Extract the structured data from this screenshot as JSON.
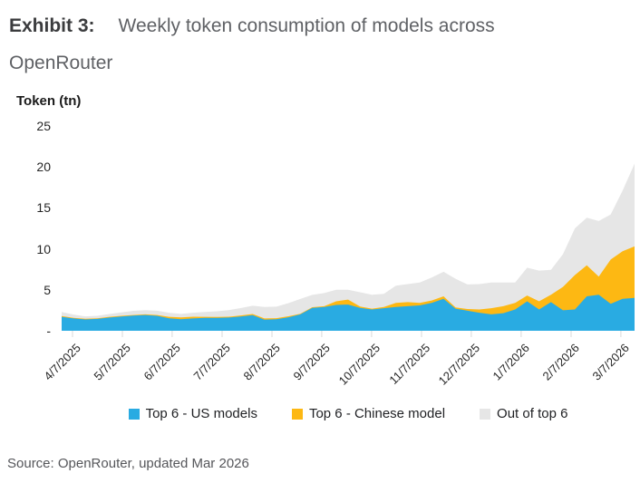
{
  "header": {
    "exhibit": "Exhibit 3:",
    "title_line1": "Weekly token consumption of models across",
    "title_line2": "OpenRouter"
  },
  "footer": {
    "source": "Source: OpenRouter, updated Mar 2026"
  },
  "chart_data": {
    "type": "area",
    "stacked": true,
    "title": "Weekly token consumption of models across OpenRouter",
    "ylabel": "Token (tn)",
    "xlabel": "",
    "ylim": [
      0,
      25
    ],
    "grid": false,
    "legend_position": "bottom",
    "y_ticks": [
      {
        "value": 25,
        "label": "25"
      },
      {
        "value": 20,
        "label": "20"
      },
      {
        "value": 15,
        "label": "15"
      },
      {
        "value": 10,
        "label": "10"
      },
      {
        "value": 5,
        "label": "5"
      },
      {
        "value": 0,
        "label": "-"
      }
    ],
    "x_tick_labels": [
      "4/7/2025",
      "5/7/2025",
      "6/7/2025",
      "7/7/2025",
      "8/7/2025",
      "9/7/2025",
      "10/7/2025",
      "11/7/2025",
      "12/7/2025",
      "1/7/2026",
      "2/7/2026",
      "3/7/2026"
    ],
    "x_tick_week_positions": [
      0.91,
      5.09,
      9.26,
      13.44,
      17.62,
      21.79,
      25.97,
      30.15,
      34.32,
      38.5,
      42.68,
      46.85
    ],
    "x_unit": "weeks",
    "series": [
      {
        "name": "Top 6 - US models",
        "color": "#29ABE2",
        "values": [
          1.7,
          1.5,
          1.38,
          1.45,
          1.62,
          1.75,
          1.85,
          1.92,
          1.82,
          1.52,
          1.42,
          1.5,
          1.58,
          1.58,
          1.62,
          1.75,
          1.9,
          1.35,
          1.42,
          1.65,
          2.0,
          2.8,
          2.9,
          3.15,
          3.2,
          2.8,
          2.6,
          2.75,
          2.9,
          3.0,
          3.1,
          3.4,
          3.9,
          2.7,
          2.45,
          2.2,
          2.0,
          2.15,
          2.6,
          3.6,
          2.6,
          3.5,
          2.5,
          2.6,
          4.2,
          4.4,
          3.3,
          3.9,
          4.0
        ]
      },
      {
        "name": "Top 6 - Chinese model",
        "color": "#FDB813",
        "values": [
          0.1,
          0.08,
          0.08,
          0.08,
          0.08,
          0.08,
          0.08,
          0.08,
          0.1,
          0.18,
          0.22,
          0.22,
          0.12,
          0.1,
          0.1,
          0.12,
          0.15,
          0.15,
          0.12,
          0.12,
          0.08,
          0.08,
          0.1,
          0.45,
          0.6,
          0.15,
          0.1,
          0.15,
          0.5,
          0.5,
          0.3,
          0.3,
          0.3,
          0.15,
          0.2,
          0.4,
          0.75,
          0.85,
          0.8,
          0.7,
          1.0,
          0.9,
          2.85,
          4.2,
          3.8,
          2.2,
          5.4,
          5.8,
          6.3
        ]
      },
      {
        "name": "Out of top 6",
        "color": "#E6E6E6",
        "values": [
          0.5,
          0.4,
          0.3,
          0.3,
          0.35,
          0.42,
          0.5,
          0.52,
          0.52,
          0.5,
          0.42,
          0.48,
          0.6,
          0.7,
          0.8,
          0.9,
          1.0,
          1.4,
          1.4,
          1.6,
          1.8,
          1.5,
          1.6,
          1.4,
          1.2,
          1.75,
          1.7,
          1.6,
          2.1,
          2.2,
          2.5,
          2.8,
          3.0,
          3.5,
          3.0,
          3.1,
          3.15,
          2.9,
          2.5,
          3.4,
          3.75,
          3.05,
          4.0,
          5.7,
          5.8,
          6.8,
          5.5,
          7.4,
          10.1
        ]
      }
    ]
  }
}
